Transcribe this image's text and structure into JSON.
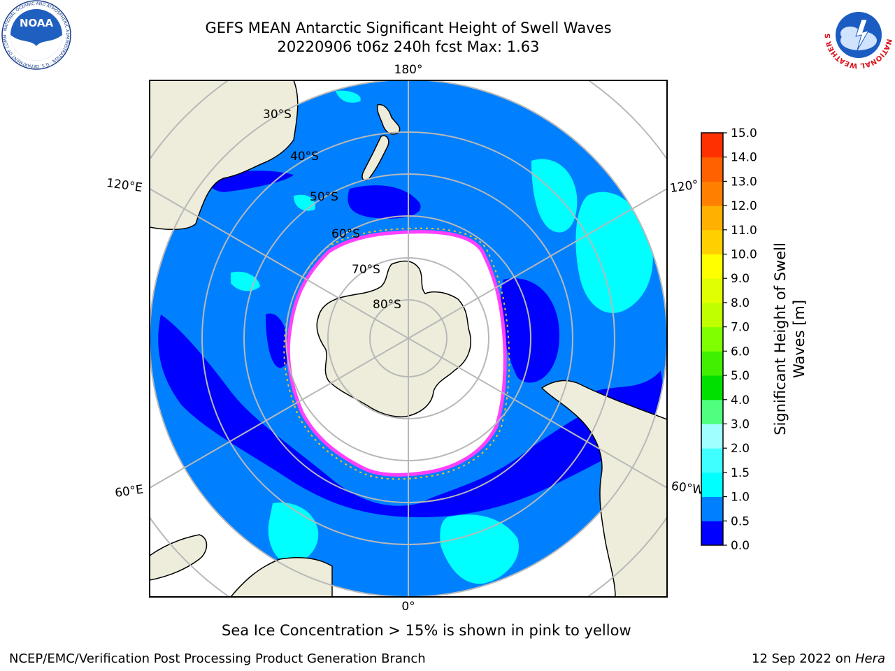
{
  "header": {
    "title_line1": "GEFS MEAN Antarctic Significant Height of Swell Waves",
    "title_line2": "20220906 t06z 240h fcst   Max: 1.63"
  },
  "logos": {
    "noaa_text": "NOAA",
    "noaa_ring_text": "NATIONAL OCEANIC AND ATMOSPHERIC ADMINISTRATION · U.S. DEPARTMENT OF COMMERCE",
    "nws_ring_text": "NATIONAL WEATHER SERVICE"
  },
  "map": {
    "projection": "south-polar-stereographic",
    "longitude_labels": [
      "180°",
      "120°E",
      "120°",
      "60°E",
      "60°W",
      "0°"
    ],
    "latitude_labels": [
      "30°S",
      "40°S",
      "50°S",
      "60°S",
      "70°S",
      "80°S"
    ],
    "colors": {
      "land": "#eeeddb",
      "ocean_0_0p5": "#0000ff",
      "ocean_0p5_1": "#0080ff",
      "ocean_1_1p5": "#00ffff",
      "ocean_1p5_2": "#40ffff",
      "sea_ice_edge": "#ff40ff",
      "sea_ice_inner": "#ffff00",
      "grid": "#b8b8b8"
    }
  },
  "colorbar": {
    "label_line1": "Significant Height of Swell",
    "label_line2": "Waves [m]",
    "ticks": [
      "0.0",
      "0.5",
      "1.0",
      "1.5",
      "2.0",
      "3.0",
      "4.0",
      "5.0",
      "6.0",
      "7.0",
      "8.0",
      "9.0",
      "10.0",
      "11.0",
      "12.0",
      "13.0",
      "14.0",
      "15.0"
    ],
    "colors": [
      "#0000ff",
      "#0080ff",
      "#00ffff",
      "#40ffff",
      "#a0ffff",
      "#50ff80",
      "#00e000",
      "#40f000",
      "#80ff00",
      "#c0ff00",
      "#e0ff00",
      "#ffff00",
      "#ffd000",
      "#ffb000",
      "#ff8000",
      "#ff6000",
      "#ff3000"
    ]
  },
  "note": "Sea Ice Concentration > 15% is shown in pink to yellow",
  "footer": {
    "left": "NCEP/EMC/Verification Post Processing Product Generation Branch",
    "right_date": "12 Sep 2022 on ",
    "right_machine": "Hera"
  }
}
